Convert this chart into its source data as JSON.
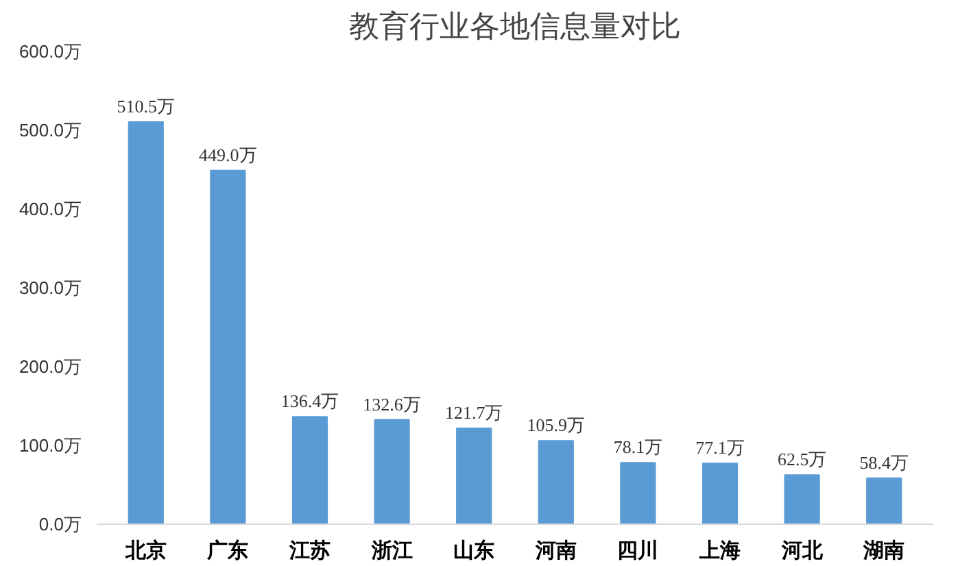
{
  "chart_data": {
    "type": "bar",
    "title": "教育行业各地信息量对比",
    "categories": [
      "北京",
      "广东",
      "江苏",
      "浙江",
      "山东",
      "河南",
      "四川",
      "上海",
      "河北",
      "湖南"
    ],
    "values": [
      510.5,
      449.0,
      136.4,
      132.6,
      121.7,
      105.9,
      78.1,
      77.1,
      62.5,
      58.4
    ],
    "value_labels": [
      "510.5万",
      "449.0万",
      "136.4万",
      "132.6万",
      "121.7万",
      "105.9万",
      "78.1万",
      "77.1万",
      "62.5万",
      "58.4万"
    ],
    "color": "#5b9bd5",
    "ylim": [
      0,
      600
    ],
    "yticks": [
      {
        "value": 0,
        "label": "0.0万"
      },
      {
        "value": 100,
        "label": "100.0万"
      },
      {
        "value": 200,
        "label": "200.0万"
      },
      {
        "value": 300,
        "label": "300.0万"
      },
      {
        "value": 400,
        "label": "400.0万"
      },
      {
        "value": 500,
        "label": "500.0万"
      },
      {
        "value": 600,
        "label": "600.0万"
      }
    ],
    "grid": false
  }
}
